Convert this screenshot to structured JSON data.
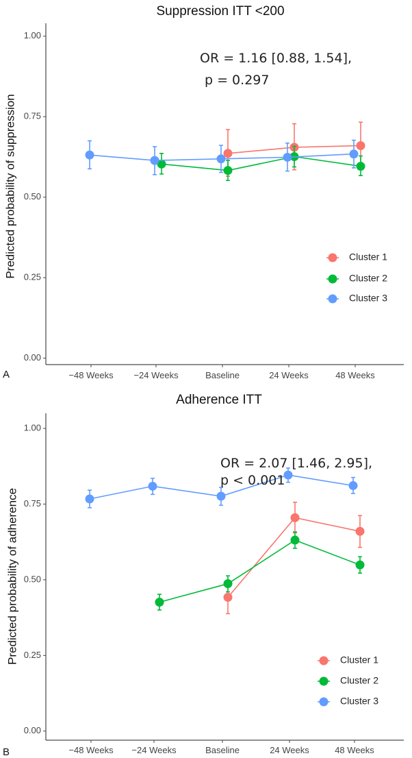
{
  "chart_data": [
    {
      "type": "line",
      "panel_label": "A",
      "title": "Suppression ITT <200",
      "xlabel": "",
      "ylabel": "Predicted probability of suppression",
      "categories": [
        "−48 Weeks",
        "−24 Weeks",
        "Baseline",
        "24 Weeks",
        "48 Weeks"
      ],
      "ylim": [
        -0.02,
        1.04
      ],
      "yticks": [
        0.0,
        0.25,
        0.5,
        0.75,
        1.0
      ],
      "ytick_labels": [
        "0.00",
        "0.25",
        "0.50",
        "0.75",
        "1.00"
      ],
      "annotation_line1": "OR = 1.16 [0.88, 1.54],",
      "annotation_line2": "p = 0.297",
      "legend_position": "bottom-right",
      "series": [
        {
          "name": "Cluster 1",
          "color": "#F8766D",
          "points": [
            {
              "cat": 2,
              "y": 0.636,
              "lo": 0.565,
              "hi": 0.71
            },
            {
              "cat": 3,
              "y": 0.655,
              "lo": 0.585,
              "hi": 0.728
            },
            {
              "cat": 4,
              "y": 0.66,
              "lo": 0.59,
              "hi": 0.733
            }
          ]
        },
        {
          "name": "Cluster 2",
          "color": "#00BA38",
          "points": [
            {
              "cat": 1,
              "y": 0.603,
              "lo": 0.572,
              "hi": 0.636
            },
            {
              "cat": 2,
              "y": 0.583,
              "lo": 0.552,
              "hi": 0.614
            },
            {
              "cat": 3,
              "y": 0.626,
              "lo": 0.594,
              "hi": 0.658
            },
            {
              "cat": 4,
              "y": 0.596,
              "lo": 0.567,
              "hi": 0.628
            }
          ]
        },
        {
          "name": "Cluster 3",
          "color": "#619CFF",
          "points": [
            {
              "cat": 0,
              "y": 0.631,
              "lo": 0.588,
              "hi": 0.675
            },
            {
              "cat": 1,
              "y": 0.614,
              "lo": 0.57,
              "hi": 0.657
            },
            {
              "cat": 2,
              "y": 0.619,
              "lo": 0.577,
              "hi": 0.661
            },
            {
              "cat": 3,
              "y": 0.624,
              "lo": 0.581,
              "hi": 0.668
            },
            {
              "cat": 4,
              "y": 0.634,
              "lo": 0.591,
              "hi": 0.677
            }
          ]
        }
      ]
    },
    {
      "type": "line",
      "panel_label": "B",
      "title": "Adherence ITT",
      "xlabel": "",
      "ylabel": "Predicted probability of adherence",
      "categories": [
        "−48 Weeks",
        "−24 Weeks",
        "Baseline",
        "24 Weeks",
        "48 Weeks"
      ],
      "ylim": [
        -0.03,
        1.05
      ],
      "yticks": [
        0.0,
        0.25,
        0.5,
        0.75,
        1.0
      ],
      "ytick_labels": [
        "0.00",
        "0.25",
        "0.50",
        "0.75",
        "1.00"
      ],
      "annotation_line1": "OR = 2.07 [1.46, 2.95],",
      "annotation_line2": "p < 0.001",
      "legend_position": "bottom-right",
      "series": [
        {
          "name": "Cluster 1",
          "color": "#F8766D",
          "points": [
            {
              "cat": 2,
              "y": 0.442,
              "lo": 0.388,
              "hi": 0.497
            },
            {
              "cat": 3,
              "y": 0.705,
              "lo": 0.655,
              "hi": 0.756
            },
            {
              "cat": 4,
              "y": 0.66,
              "lo": 0.607,
              "hi": 0.712
            }
          ]
        },
        {
          "name": "Cluster 2",
          "color": "#00BA38",
          "points": [
            {
              "cat": 1,
              "y": 0.426,
              "lo": 0.4,
              "hi": 0.452
            },
            {
              "cat": 2,
              "y": 0.487,
              "lo": 0.46,
              "hi": 0.513
            },
            {
              "cat": 3,
              "y": 0.631,
              "lo": 0.604,
              "hi": 0.658
            },
            {
              "cat": 4,
              "y": 0.549,
              "lo": 0.522,
              "hi": 0.576
            }
          ]
        },
        {
          "name": "Cluster 3",
          "color": "#619CFF",
          "points": [
            {
              "cat": 0,
              "y": 0.767,
              "lo": 0.738,
              "hi": 0.796
            },
            {
              "cat": 1,
              "y": 0.809,
              "lo": 0.782,
              "hi": 0.835
            },
            {
              "cat": 2,
              "y": 0.776,
              "lo": 0.746,
              "hi": 0.805
            },
            {
              "cat": 3,
              "y": 0.846,
              "lo": 0.822,
              "hi": 0.869
            },
            {
              "cat": 4,
              "y": 0.811,
              "lo": 0.785,
              "hi": 0.838
            }
          ]
        }
      ]
    }
  ]
}
